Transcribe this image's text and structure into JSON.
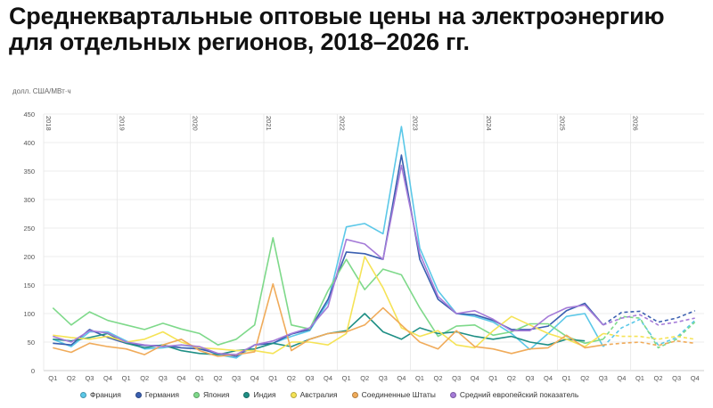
{
  "title": "Среднеквартальные оптовые цены на электроэнергию для отдельных регионов, 2018–2026 гг.",
  "chart_data": {
    "type": "line",
    "title": "Среднеквартальные оптовые цены на электроэнергию для отдельных регионов, 2018–2026 гг.",
    "ylabel": "долл. США/МВт·ч",
    "ylim": [
      0,
      450
    ],
    "yticks": [
      "0",
      "50",
      "100",
      "150",
      "200",
      "250",
      "300",
      "350",
      "400",
      "450"
    ],
    "grid": true,
    "legend_position": "bottom",
    "years": [
      "2018",
      "2019",
      "2020",
      "2021",
      "2022",
      "2023",
      "2024",
      "2025",
      "2026"
    ],
    "x": [
      "Q1",
      "Q2",
      "Q3",
      "Q4",
      "Q1",
      "Q2",
      "Q3",
      "Q4",
      "Q1",
      "Q2",
      "Q3",
      "Q4",
      "Q1",
      "Q2",
      "Q3",
      "Q4",
      "Q1",
      "Q2",
      "Q3",
      "Q4",
      "Q1",
      "Q2",
      "Q3",
      "Q4",
      "Q1",
      "Q2",
      "Q3",
      "Q4",
      "Q1",
      "Q2",
      "Q3",
      "Q4",
      "Q1",
      "Q2",
      "Q3",
      "Q4"
    ],
    "forecast_from_index": 30,
    "series": [
      {
        "name": "Франция",
        "color": "#5bc8e8",
        "values": [
          55,
          42,
          68,
          68,
          52,
          38,
          40,
          45,
          40,
          28,
          22,
          45,
          48,
          60,
          70,
          120,
          252,
          258,
          240,
          428,
          215,
          140,
          100,
          95,
          85,
          65,
          37,
          65,
          95,
          100,
          42,
          75,
          90,
          45,
          58,
          88
        ]
      },
      {
        "name": "Германия",
        "color": "#3a5fb0",
        "values": [
          48,
          45,
          72,
          58,
          48,
          44,
          44,
          40,
          38,
          30,
          25,
          45,
          48,
          64,
          72,
          125,
          208,
          205,
          195,
          378,
          195,
          125,
          100,
          98,
          88,
          72,
          72,
          78,
          105,
          118,
          80,
          102,
          104,
          85,
          92,
          105
        ]
      },
      {
        "name": "Япония",
        "color": "#7ed98a",
        "values": [
          110,
          80,
          103,
          88,
          80,
          72,
          83,
          73,
          65,
          45,
          55,
          80,
          233,
          80,
          73,
          140,
          195,
          142,
          178,
          168,
          110,
          60,
          78,
          80,
          62,
          68,
          82,
          82,
          60,
          48,
          55,
          95,
          92,
          40,
          55,
          85
        ]
      },
      {
        "name": "Индия",
        "color": "#1f8f85",
        "values": [
          55,
          52,
          58,
          65,
          48,
          40,
          45,
          35,
          30,
          28,
          35,
          38,
          48,
          42,
          55,
          65,
          70,
          100,
          68,
          55,
          75,
          65,
          68,
          60,
          55,
          60,
          50,
          45,
          55,
          52,
          null,
          null,
          null,
          null,
          null,
          null
        ]
      },
      {
        "name": "Австралия",
        "color": "#f5e356",
        "values": [
          62,
          58,
          55,
          60,
          50,
          55,
          68,
          50,
          40,
          38,
          35,
          35,
          30,
          50,
          50,
          45,
          65,
          200,
          145,
          75,
          60,
          70,
          45,
          40,
          70,
          95,
          80,
          65,
          55,
          42,
          65,
          60,
          60,
          55,
          60,
          55
        ]
      },
      {
        "name": "Соединенные Штаты",
        "color": "#f0ab5a",
        "values": [
          40,
          32,
          48,
          42,
          38,
          28,
          45,
          55,
          35,
          25,
          28,
          33,
          152,
          35,
          55,
          65,
          68,
          80,
          110,
          80,
          50,
          38,
          70,
          42,
          38,
          30,
          38,
          40,
          62,
          40,
          45,
          48,
          50,
          44,
          52,
          48
        ]
      },
      {
        "name": "Средний европейский показатель",
        "color": "#a57bd8",
        "values": [
          60,
          50,
          70,
          66,
          50,
          45,
          42,
          45,
          42,
          30,
          28,
          45,
          52,
          65,
          75,
          112,
          230,
          222,
          195,
          360,
          205,
          130,
          100,
          105,
          90,
          70,
          70,
          95,
          110,
          115,
          80,
          92,
          98,
          80,
          85,
          92
        ]
      }
    ]
  }
}
